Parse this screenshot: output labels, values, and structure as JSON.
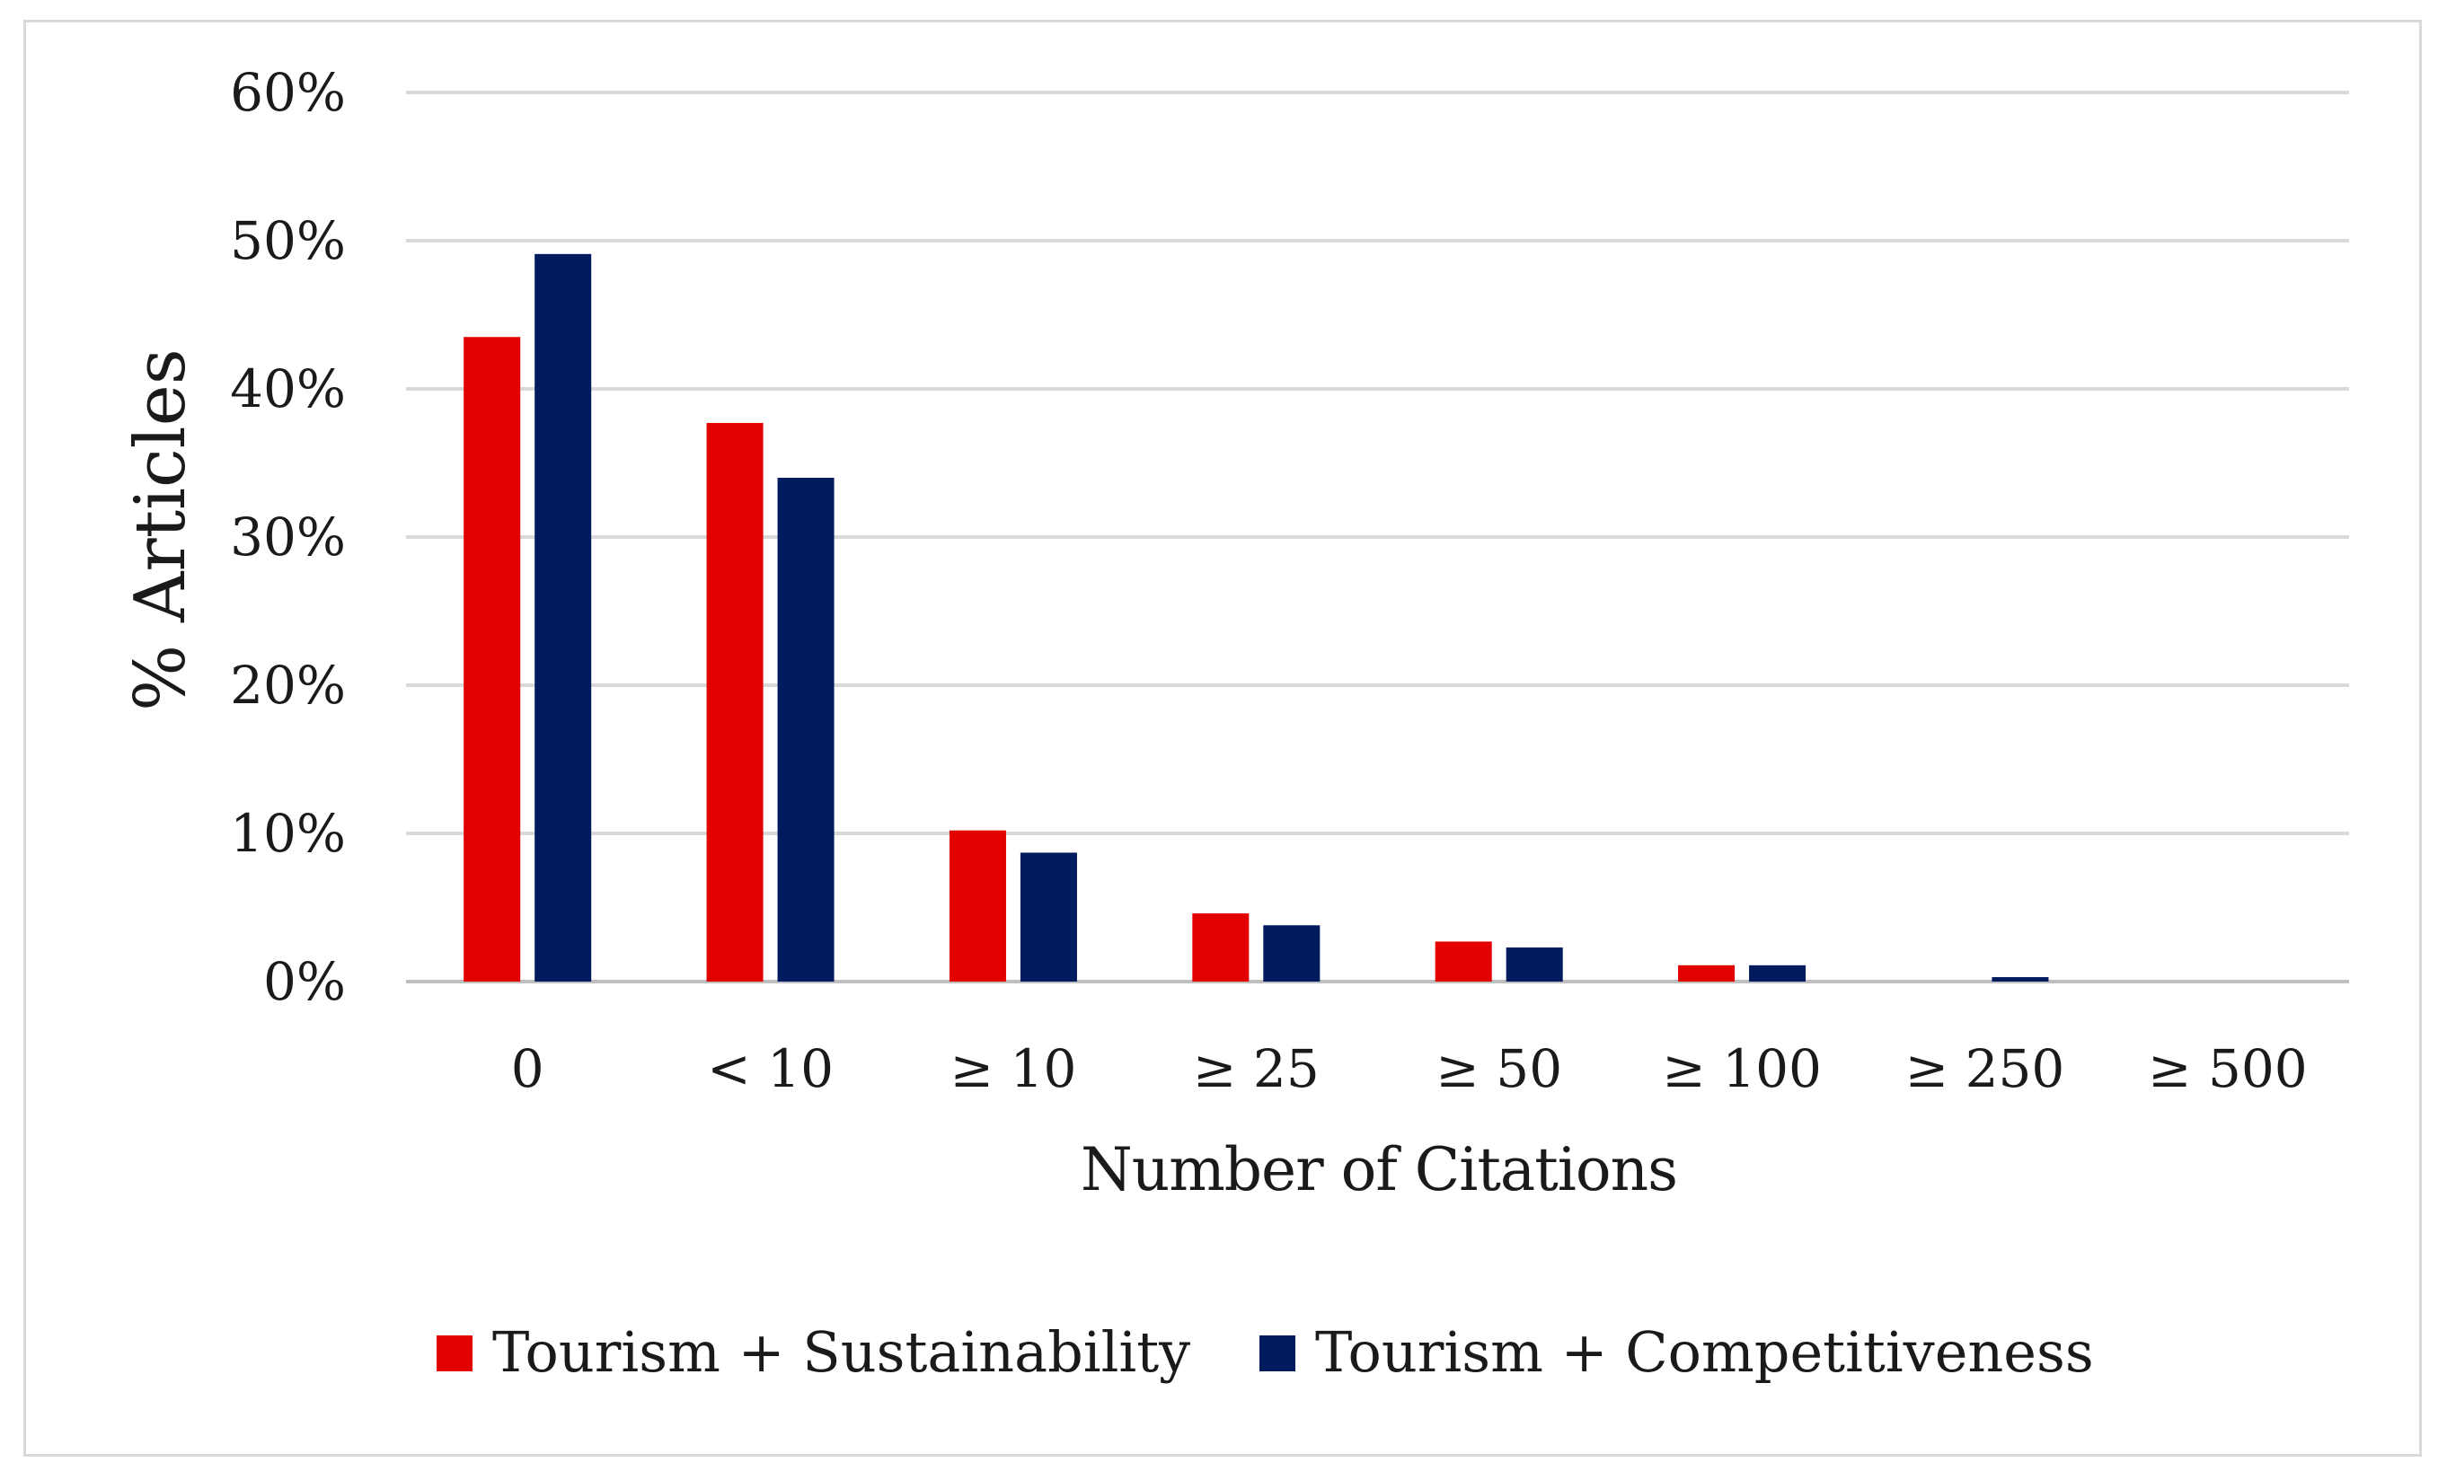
{
  "chart_data": {
    "type": "bar",
    "title": "",
    "xlabel": "Number of Citations",
    "ylabel": "% Articles",
    "categories": [
      "0",
      "< 10",
      "≥ 10",
      "≥ 25",
      "≥ 50",
      "≥ 100",
      "≥ 250",
      "≥ 500"
    ],
    "ylim": [
      0,
      60
    ],
    "yticks": [
      0,
      10,
      20,
      30,
      40,
      50,
      60
    ],
    "ytick_labels": [
      "0%",
      "10%",
      "20%",
      "30%",
      "40%",
      "50%",
      "60%"
    ],
    "grid": true,
    "legend_position": "bottom",
    "series": [
      {
        "name": "Tourism + Sustainability",
        "color": "#e30000",
        "values": [
          43.5,
          37.7,
          10.2,
          4.6,
          2.7,
          1.1,
          0.0,
          0.0
        ]
      },
      {
        "name": "Tourism + Competitiveness",
        "color": "#001b5e",
        "values": [
          49.1,
          34.0,
          8.7,
          3.8,
          2.3,
          1.1,
          0.3,
          0.0
        ]
      }
    ]
  }
}
